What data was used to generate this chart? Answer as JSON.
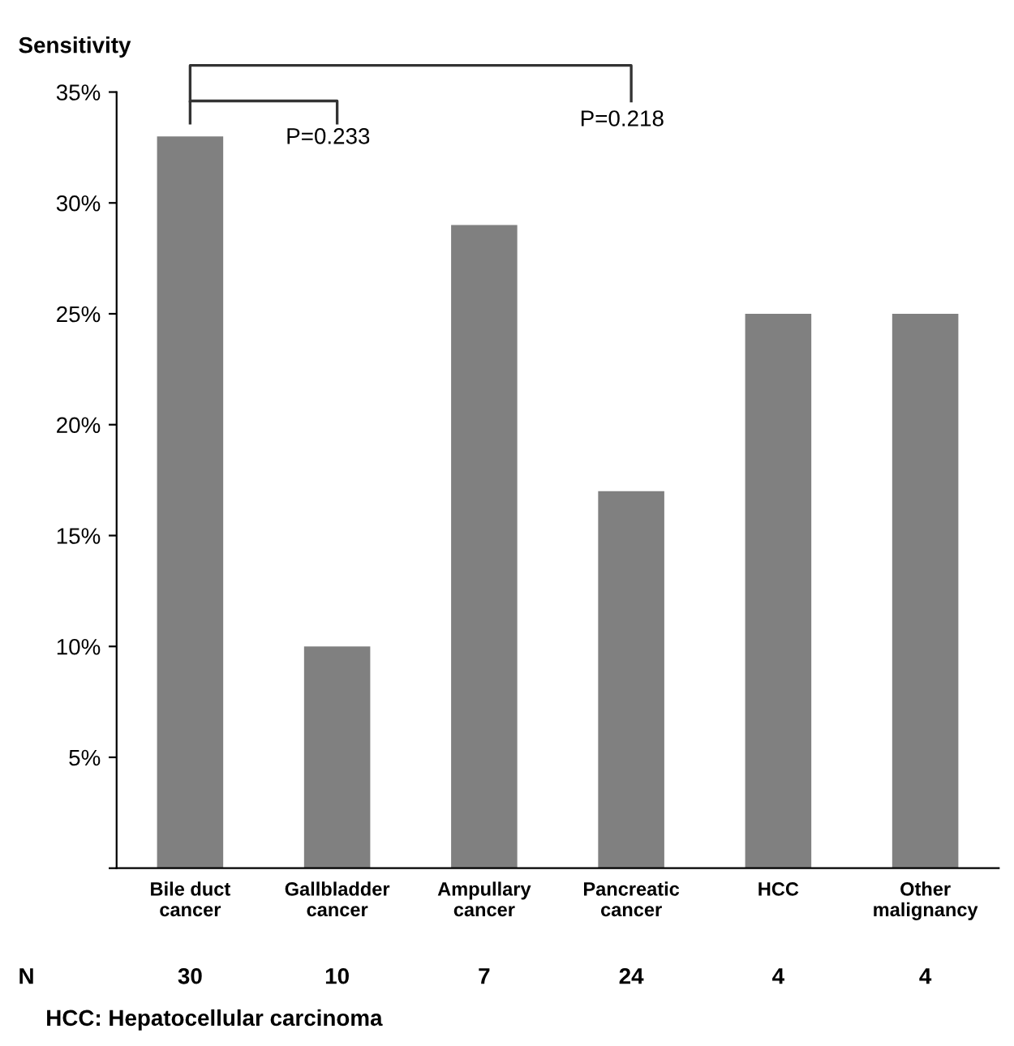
{
  "chart_data": {
    "type": "bar",
    "ylabel": "Sensitivity",
    "categories": [
      "Bile duct\ncancer",
      "Gallbladder\ncancer",
      "Ampullary\ncancer",
      "Pancreatic\ncancer",
      "HCC",
      "Other\nmalignancy"
    ],
    "values": [
      33,
      10,
      29,
      17,
      25,
      25
    ],
    "color": "#808080",
    "ylim": [
      0,
      35
    ],
    "yticks": [
      {
        "value": 0,
        "label": null
      },
      {
        "value": 5,
        "label": "5%"
      },
      {
        "value": 10,
        "label": "10%"
      },
      {
        "value": 15,
        "label": "15%"
      },
      {
        "value": 20,
        "label": "20%"
      },
      {
        "value": 25,
        "label": "25%"
      },
      {
        "value": 30,
        "label": "30%"
      },
      {
        "value": 35,
        "label": "35%"
      }
    ],
    "grid": false,
    "annotations": [
      "P=0.233",
      "P=0.218",
      "N",
      "30",
      "10",
      "7",
      "24",
      "4",
      "4",
      "HCC: Hepatocellular carcinoma"
    ]
  }
}
